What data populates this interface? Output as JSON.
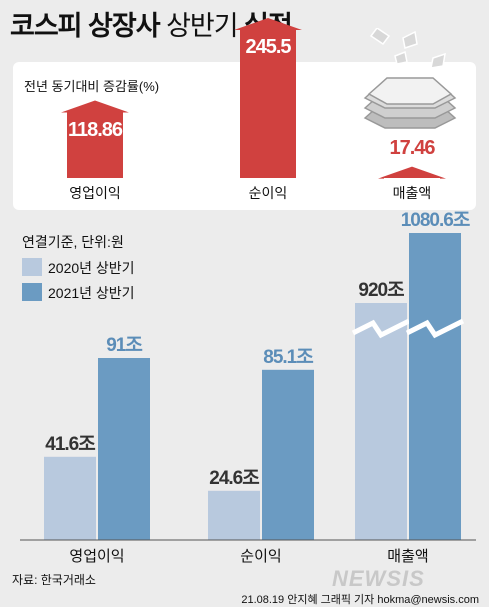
{
  "title": {
    "bold": "코스피 상장사",
    "thin": "상반기",
    "bold2": "실적"
  },
  "upper": {
    "subtitle": "전년 동기대비 증감률(%)",
    "chart_data": {
      "type": "bar",
      "title": "전년 동기대비 증감률(%)",
      "categories": [
        "영업이익",
        "순이익",
        "매출액"
      ],
      "values": [
        118.86,
        245.5,
        17.46
      ],
      "value_labels": [
        "118.86",
        "245.5",
        "17.46"
      ]
    }
  },
  "lower": {
    "note": "연결기준, 단위:원",
    "legend": [
      {
        "label": "2020년 상반기",
        "color": "#b8c9de"
      },
      {
        "label": "2021년 상반기",
        "color": "#6b9bc2"
      }
    ],
    "chart_data": {
      "type": "bar",
      "categories": [
        "영업이익",
        "순이익",
        "매출액"
      ],
      "series": [
        {
          "name": "2020년 상반기",
          "values": [
            41.6,
            24.6,
            920
          ],
          "labels": [
            "41.6조",
            "24.6조",
            "920조"
          ]
        },
        {
          "name": "2021년 상반기",
          "values": [
            91,
            85.1,
            1080.6
          ],
          "labels": [
            "91조",
            "85.1조",
            "1080.6조"
          ]
        }
      ],
      "unit": "조원",
      "axis_break_on": "매출액"
    }
  },
  "colors": {
    "up_arrow": "#d0413f",
    "prev": "#b8c9de",
    "curr": "#6b9bc2"
  },
  "source": "자료: 한국거래소",
  "credit": "21.08.19 안지혜 그래픽 기자 hokma@newsis.com",
  "logo": "NEWSIS"
}
